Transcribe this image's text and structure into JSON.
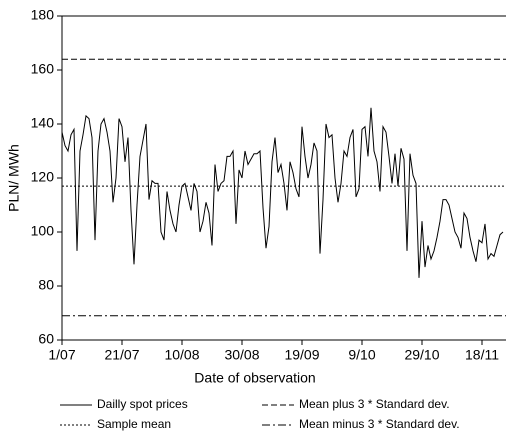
{
  "chart_data": {
    "type": "line",
    "y_label": "PLN/ MWh",
    "x_label": "Date of observation",
    "x": [
      0,
      1,
      2,
      3,
      4,
      5,
      6,
      7,
      8,
      9,
      10,
      11,
      12,
      13,
      14,
      15,
      16,
      17,
      18,
      19,
      20,
      21,
      22,
      23,
      24,
      25,
      26,
      27,
      28,
      29,
      30,
      31,
      32,
      33,
      34,
      35,
      36,
      37,
      38,
      39,
      40,
      41,
      42,
      43,
      44,
      45,
      46,
      47,
      48,
      49,
      50,
      51,
      52,
      53,
      54,
      55,
      56,
      57,
      58,
      59,
      60,
      61,
      62,
      63,
      64,
      65,
      66,
      67,
      68,
      69,
      70,
      71,
      72,
      73,
      74,
      75,
      76,
      77,
      78,
      79,
      80,
      81,
      82,
      83,
      84,
      85,
      86,
      87,
      88,
      89,
      90,
      91,
      92,
      93,
      94,
      95,
      96,
      97,
      98,
      99,
      100,
      101,
      102,
      103,
      104,
      105,
      106,
      107,
      108,
      109,
      110,
      111,
      112,
      113,
      114,
      115,
      116,
      117,
      118,
      119,
      120,
      121,
      122,
      123,
      124,
      125,
      126,
      127,
      128,
      129,
      130,
      131,
      132,
      133,
      134,
      135,
      136,
      137,
      138,
      139,
      140,
      141,
      142,
      143,
      144,
      145,
      146,
      147
    ],
    "series": [
      {
        "name": "Dailly spot prices",
        "color": "#000000",
        "values": [
          137,
          132,
          130,
          136,
          138,
          93,
          130,
          136,
          143,
          142,
          135,
          97,
          130,
          140,
          142,
          137,
          130,
          111,
          120,
          142,
          139,
          126,
          135,
          108,
          88,
          110,
          128,
          134,
          140,
          112,
          119,
          118,
          118,
          100,
          97,
          115,
          108,
          103,
          100,
          110,
          117,
          118,
          113,
          108,
          118,
          115,
          100,
          104,
          111,
          107,
          95,
          125,
          115,
          118,
          119,
          128,
          128,
          130,
          103,
          123,
          120,
          130,
          125,
          127,
          129,
          129,
          130,
          109,
          94,
          102,
          126,
          135,
          122,
          125,
          118,
          108,
          126,
          122,
          116,
          113,
          139,
          128,
          120,
          125,
          133,
          130,
          92,
          112,
          140,
          135,
          136,
          120,
          111,
          118,
          130,
          128,
          135,
          138,
          113,
          116,
          138,
          139,
          128,
          146,
          130,
          126,
          115,
          139,
          137,
          128,
          118,
          129,
          117,
          131,
          127,
          93,
          129,
          121,
          118,
          83,
          104,
          87,
          95,
          90,
          93,
          98,
          104,
          112,
          112,
          110,
          105,
          100,
          98,
          94,
          107,
          105,
          98,
          93,
          89,
          97,
          96,
          103,
          90,
          92,
          91,
          95,
          99,
          100
        ]
      }
    ],
    "reference_lines": [
      {
        "name": "Sample mean",
        "value": 117,
        "dash": "dotted",
        "color": "#000000"
      },
      {
        "name": "Mean plus 3 * Standard dev.",
        "value": 164,
        "dash": "dashed",
        "color": "#000000"
      },
      {
        "name": "Mean minus 3 * Standard dev.",
        "value": 69,
        "dash": "dashdot",
        "color": "#000000"
      }
    ],
    "xlim": [
      0,
      148
    ],
    "xticks": [
      {
        "value": 0,
        "label": "1/07"
      },
      {
        "value": 20,
        "label": "21/07"
      },
      {
        "value": 40,
        "label": "10/08"
      },
      {
        "value": 60,
        "label": "30/08"
      },
      {
        "value": 80,
        "label": "19/09"
      },
      {
        "value": 100,
        "label": "9/10"
      },
      {
        "value": 120,
        "label": "29/10"
      },
      {
        "value": 140,
        "label": "18/11"
      }
    ],
    "ylim": [
      60,
      180
    ],
    "yticks": [
      60,
      80,
      100,
      120,
      140,
      160,
      180
    ]
  }
}
